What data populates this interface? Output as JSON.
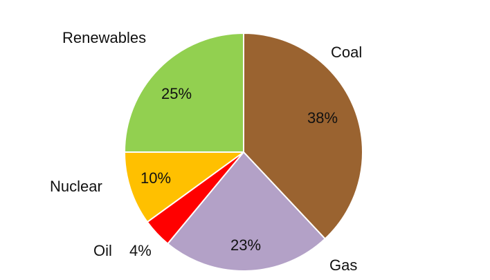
{
  "chart_data": {
    "type": "pie",
    "title": "",
    "start_angle_deg": 0,
    "direction": "clockwise",
    "slices": [
      {
        "category": "Coal",
        "value": 38,
        "label": "38%",
        "color": "#9A6330"
      },
      {
        "category": "Gas",
        "value": 23,
        "label": "23%",
        "color": "#B3A1C7"
      },
      {
        "category": "Oil",
        "value": 4,
        "label": "4%",
        "color": "#FF0000"
      },
      {
        "category": "Nuclear",
        "value": 10,
        "label": "10%",
        "color": "#FFC000"
      },
      {
        "category": "Renewables",
        "value": 25,
        "label": "25%",
        "color": "#92D050"
      }
    ]
  }
}
